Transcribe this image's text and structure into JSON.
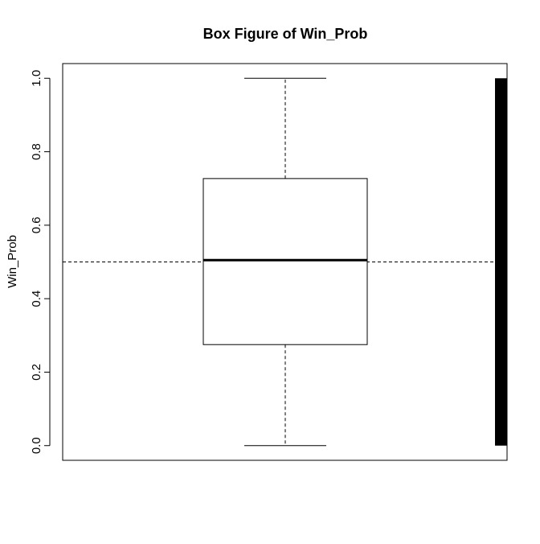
{
  "chart_data": {
    "type": "box",
    "title": "Box Figure of Win_Prob",
    "xlabel": "",
    "ylabel": "Win_Prob",
    "ylim": [
      -0.04,
      1.04
    ],
    "y_ticks": [
      0.0,
      0.2,
      0.4,
      0.6,
      0.8,
      1.0
    ],
    "y_tick_labels": [
      "0.0",
      "0.2",
      "0.4",
      "0.6",
      "0.8",
      "1.0"
    ],
    "grid": false,
    "box": {
      "whisker_min": 0.0,
      "q1": 0.275,
      "median": 0.505,
      "q3": 0.727,
      "whisker_max": 1.0
    },
    "reference_line_y": 0.5,
    "right_bar": {
      "y_min": 0.0,
      "y_max": 1.0
    },
    "colors": {
      "line": "#000000",
      "fill": "#ffffff",
      "background": "#ffffff"
    }
  }
}
